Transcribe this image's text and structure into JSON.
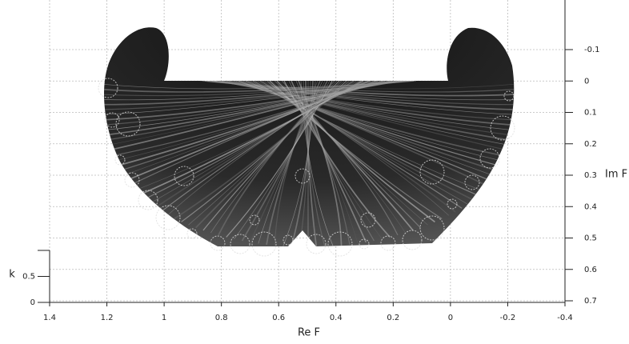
{
  "chart_data": {
    "type": "surface",
    "x_label": "Re F",
    "y_label": "Im F",
    "z_label": "k",
    "xlim": [
      1.4,
      -0.4
    ],
    "xticks": [
      1.4,
      1.2,
      1,
      0.8,
      0.6,
      0.4,
      0.2,
      0,
      -0.2,
      -0.4
    ],
    "ylim": [
      -0.1,
      0.7
    ],
    "yticks": [
      -0.1,
      0,
      0.1,
      0.2,
      0.3,
      0.4,
      0.5,
      0.6,
      0.7
    ],
    "zlim": [
      0,
      1
    ],
    "zticks": [
      0,
      0.5
    ],
    "grid": true,
    "color": "#1e1e1e"
  }
}
